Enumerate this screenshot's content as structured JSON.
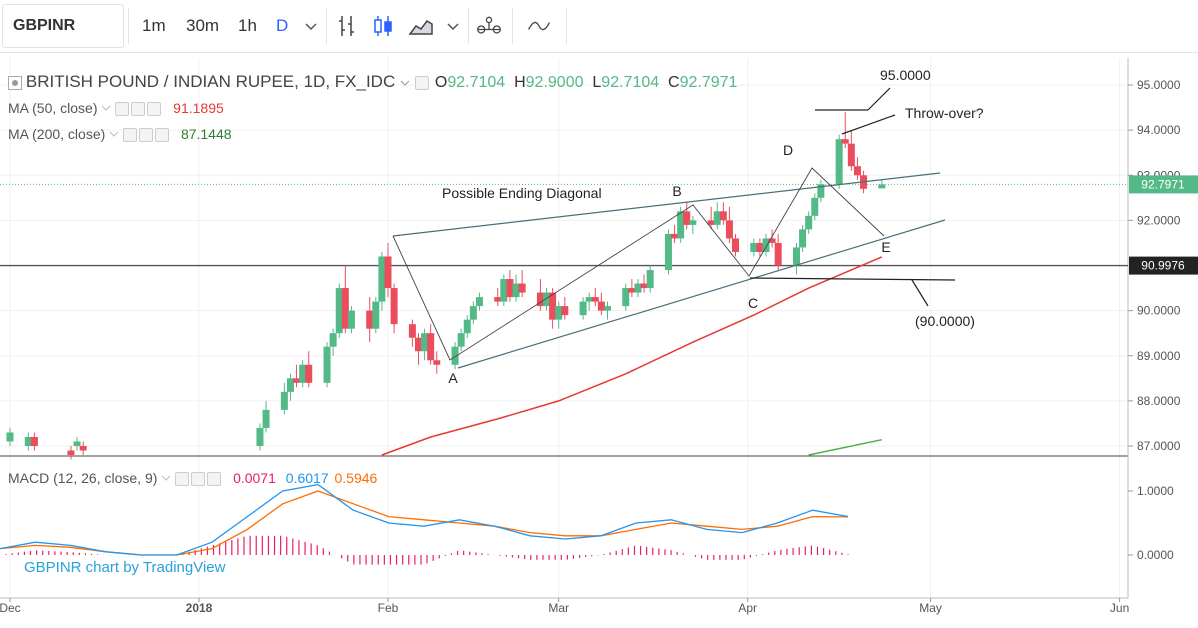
{
  "toolbar": {
    "symbol": "GBPINR",
    "intervals": [
      "1m",
      "30m",
      "1h",
      "D"
    ],
    "active_interval": "D",
    "icons": [
      "chevron-down-icon",
      "bar-style-icon",
      "candles-icon",
      "area-icon",
      "chevron-down-icon",
      "indicators-icon",
      "compare-icon"
    ]
  },
  "legend": {
    "title": "BRITISH POUND / INDIAN RUPEE, 1D, FX_IDC",
    "ohlc": {
      "o_label": "O",
      "o": "92.7104",
      "h_label": "H",
      "h": "92.9000",
      "l_label": "L",
      "l": "92.7104",
      "c_label": "C",
      "c": "92.7971"
    },
    "ma50": {
      "label": "MA (50, close)",
      "value": "91.1895"
    },
    "ma200": {
      "label": "MA (200, close)",
      "value": "87.1448"
    },
    "macd": {
      "label": "MACD (12, 26, close, 9)",
      "hist": "0.0071",
      "macd": "0.6017",
      "signal": "0.5946"
    }
  },
  "colors": {
    "up": "#53b987",
    "down": "#eb4d5c",
    "ma50": "#e53935",
    "ma200": "#4caf50",
    "macd": "#2196f3",
    "signal": "#ff6d00",
    "hist": "#e91e63",
    "accent": "#2962ff"
  },
  "annotations": {
    "title": "Possible Ending Diagonal",
    "labels": [
      "A",
      "B",
      "C",
      "D",
      "E"
    ],
    "target_high": "95.0000",
    "throw_over": "Throw-over?",
    "target_low": "(90.0000)"
  },
  "watermark": "GBPINR chart by TradingView",
  "chart_data": {
    "type": "candlestick",
    "title": "BRITISH POUND / INDIAN RUPEE, 1D, FX_IDC",
    "xlabels": [
      "Dec",
      "2018",
      "Feb",
      "Mar",
      "Apr",
      "May",
      "Jun"
    ],
    "yticks": [
      "95.0000",
      "94.0000",
      "93.0000",
      "92.0000",
      "90.0000",
      "89.0000",
      "88.0000",
      "87.0000"
    ],
    "price_labels": {
      "last": "92.7971",
      "line": "90.9976"
    },
    "ylim": [
      86.8,
      95.3
    ],
    "series": [
      {
        "name": "GBPINR",
        "candles": [
          {
            "date": "2017-12-01",
            "o": 87.1,
            "h": 87.4,
            "l": 87.0,
            "c": 87.3
          },
          {
            "date": "2017-12-04",
            "o": 87.0,
            "h": 87.3,
            "l": 86.9,
            "c": 87.2
          },
          {
            "date": "2017-12-05",
            "o": 87.2,
            "h": 87.3,
            "l": 86.9,
            "c": 87.0
          },
          {
            "date": "2017-12-11",
            "o": 86.9,
            "h": 87.0,
            "l": 86.7,
            "c": 86.8
          },
          {
            "date": "2017-12-12",
            "o": 87.0,
            "h": 87.2,
            "l": 86.9,
            "c": 87.1
          },
          {
            "date": "2017-12-13",
            "o": 87.0,
            "h": 87.1,
            "l": 86.8,
            "c": 86.9
          },
          {
            "date": "2018-01-11",
            "o": 87.0,
            "h": 87.5,
            "l": 86.9,
            "c": 87.4
          },
          {
            "date": "2018-01-12",
            "o": 87.4,
            "h": 88.0,
            "l": 87.3,
            "c": 87.8
          },
          {
            "date": "2018-01-15",
            "o": 87.8,
            "h": 88.4,
            "l": 87.7,
            "c": 88.2
          },
          {
            "date": "2018-01-16",
            "o": 88.2,
            "h": 88.6,
            "l": 88.0,
            "c": 88.5
          },
          {
            "date": "2018-01-17",
            "o": 88.5,
            "h": 88.8,
            "l": 88.3,
            "c": 88.4
          },
          {
            "date": "2018-01-18",
            "o": 88.4,
            "h": 88.9,
            "l": 88.3,
            "c": 88.8
          },
          {
            "date": "2018-01-19",
            "o": 88.8,
            "h": 89.1,
            "l": 88.3,
            "c": 88.4
          },
          {
            "date": "2018-01-22",
            "o": 88.4,
            "h": 89.3,
            "l": 88.3,
            "c": 89.2
          },
          {
            "date": "2018-01-23",
            "o": 89.2,
            "h": 89.6,
            "l": 89.0,
            "c": 89.5
          },
          {
            "date": "2018-01-24",
            "o": 89.5,
            "h": 90.6,
            "l": 89.4,
            "c": 90.5
          },
          {
            "date": "2018-01-25",
            "o": 90.5,
            "h": 91.0,
            "l": 89.5,
            "c": 89.6
          },
          {
            "date": "2018-01-26",
            "o": 89.6,
            "h": 90.1,
            "l": 89.5,
            "c": 90.0
          },
          {
            "date": "2018-01-29",
            "o": 90.0,
            "h": 90.3,
            "l": 89.3,
            "c": 89.6
          },
          {
            "date": "2018-01-30",
            "o": 89.6,
            "h": 90.3,
            "l": 89.5,
            "c": 90.2
          },
          {
            "date": "2018-01-31",
            "o": 90.2,
            "h": 91.3,
            "l": 90.0,
            "c": 91.2
          },
          {
            "date": "2018-02-01",
            "o": 91.2,
            "h": 91.5,
            "l": 90.3,
            "c": 90.5
          },
          {
            "date": "2018-02-02",
            "o": 90.5,
            "h": 90.6,
            "l": 89.5,
            "c": 89.7
          },
          {
            "date": "2018-02-05",
            "o": 89.7,
            "h": 89.8,
            "l": 89.2,
            "c": 89.4
          },
          {
            "date": "2018-02-06",
            "o": 89.4,
            "h": 89.5,
            "l": 88.8,
            "c": 89.1
          },
          {
            "date": "2018-02-07",
            "o": 89.1,
            "h": 89.6,
            "l": 88.9,
            "c": 89.5
          },
          {
            "date": "2018-02-08",
            "o": 89.5,
            "h": 89.7,
            "l": 88.8,
            "c": 88.9
          },
          {
            "date": "2018-02-09",
            "o": 88.9,
            "h": 89.1,
            "l": 88.6,
            "c": 88.8
          },
          {
            "date": "2018-02-12",
            "o": 88.8,
            "h": 89.3,
            "l": 88.7,
            "c": 89.2
          },
          {
            "date": "2018-02-13",
            "o": 89.2,
            "h": 89.6,
            "l": 89.1,
            "c": 89.5
          },
          {
            "date": "2018-02-14",
            "o": 89.5,
            "h": 89.9,
            "l": 89.4,
            "c": 89.8
          },
          {
            "date": "2018-02-15",
            "o": 89.8,
            "h": 90.2,
            "l": 89.7,
            "c": 90.1
          },
          {
            "date": "2018-02-16",
            "o": 90.1,
            "h": 90.4,
            "l": 90.0,
            "c": 90.3
          },
          {
            "date": "2018-02-19",
            "o": 90.3,
            "h": 90.5,
            "l": 90.1,
            "c": 90.2
          },
          {
            "date": "2018-02-20",
            "o": 90.2,
            "h": 90.8,
            "l": 90.1,
            "c": 90.7
          },
          {
            "date": "2018-02-21",
            "o": 90.7,
            "h": 90.9,
            "l": 90.2,
            "c": 90.3
          },
          {
            "date": "2018-02-22",
            "o": 90.3,
            "h": 90.8,
            "l": 90.2,
            "c": 90.6
          },
          {
            "date": "2018-02-23",
            "o": 90.6,
            "h": 90.9,
            "l": 90.3,
            "c": 90.4
          },
          {
            "date": "2018-02-26",
            "o": 90.4,
            "h": 90.7,
            "l": 90.0,
            "c": 90.1
          },
          {
            "date": "2018-02-27",
            "o": 90.1,
            "h": 90.5,
            "l": 90.0,
            "c": 90.4
          },
          {
            "date": "2018-02-28",
            "o": 90.4,
            "h": 90.5,
            "l": 89.6,
            "c": 89.8
          },
          {
            "date": "2018-03-01",
            "o": 89.8,
            "h": 90.2,
            "l": 89.6,
            "c": 90.1
          },
          {
            "date": "2018-03-02",
            "o": 90.1,
            "h": 90.3,
            "l": 89.8,
            "c": 89.9
          },
          {
            "date": "2018-03-05",
            "o": 89.9,
            "h": 90.3,
            "l": 89.8,
            "c": 90.2
          },
          {
            "date": "2018-03-06",
            "o": 90.2,
            "h": 90.4,
            "l": 90.0,
            "c": 90.3
          },
          {
            "date": "2018-03-07",
            "o": 90.3,
            "h": 90.5,
            "l": 90.1,
            "c": 90.2
          },
          {
            "date": "2018-03-08",
            "o": 90.2,
            "h": 90.4,
            "l": 89.9,
            "c": 90.0
          },
          {
            "date": "2018-03-09",
            "o": 90.0,
            "h": 90.2,
            "l": 89.8,
            "c": 90.1
          },
          {
            "date": "2018-03-12",
            "o": 90.1,
            "h": 90.6,
            "l": 90.0,
            "c": 90.5
          },
          {
            "date": "2018-03-13",
            "o": 90.5,
            "h": 90.7,
            "l": 90.3,
            "c": 90.4
          },
          {
            "date": "2018-03-14",
            "o": 90.4,
            "h": 90.7,
            "l": 90.3,
            "c": 90.6
          },
          {
            "date": "2018-03-15",
            "o": 90.6,
            "h": 90.8,
            "l": 90.4,
            "c": 90.5
          },
          {
            "date": "2018-03-16",
            "o": 90.5,
            "h": 91.0,
            "l": 90.4,
            "c": 90.9
          },
          {
            "date": "2018-03-19",
            "o": 90.9,
            "h": 91.8,
            "l": 90.8,
            "c": 91.7
          },
          {
            "date": "2018-03-20",
            "o": 91.7,
            "h": 91.9,
            "l": 91.5,
            "c": 91.6
          },
          {
            "date": "2018-03-21",
            "o": 91.6,
            "h": 92.3,
            "l": 91.5,
            "c": 92.2
          },
          {
            "date": "2018-03-22",
            "o": 92.2,
            "h": 92.4,
            "l": 91.8,
            "c": 91.9
          },
          {
            "date": "2018-03-23",
            "o": 91.9,
            "h": 92.1,
            "l": 91.7,
            "c": 92.0
          },
          {
            "date": "2018-03-26",
            "o": 92.0,
            "h": 92.3,
            "l": 91.8,
            "c": 91.9
          },
          {
            "date": "2018-03-27",
            "o": 91.9,
            "h": 92.4,
            "l": 91.8,
            "c": 92.2
          },
          {
            "date": "2018-03-28",
            "o": 92.2,
            "h": 92.4,
            "l": 91.9,
            "c": 92.0
          },
          {
            "date": "2018-03-29",
            "o": 92.0,
            "h": 92.3,
            "l": 91.5,
            "c": 91.6
          },
          {
            "date": "2018-03-30",
            "o": 91.6,
            "h": 91.7,
            "l": 91.2,
            "c": 91.3
          },
          {
            "date": "2018-04-02",
            "o": 91.3,
            "h": 91.6,
            "l": 91.2,
            "c": 91.5
          },
          {
            "date": "2018-04-03",
            "o": 91.5,
            "h": 91.6,
            "l": 91.2,
            "c": 91.3
          },
          {
            "date": "2018-04-04",
            "o": 91.3,
            "h": 91.7,
            "l": 91.2,
            "c": 91.6
          },
          {
            "date": "2018-04-05",
            "o": 91.6,
            "h": 91.8,
            "l": 91.4,
            "c": 91.5
          },
          {
            "date": "2018-04-06",
            "o": 91.5,
            "h": 91.7,
            "l": 90.9,
            "c": 91.0
          },
          {
            "date": "2018-04-09",
            "o": 91.0,
            "h": 91.5,
            "l": 90.8,
            "c": 91.4
          },
          {
            "date": "2018-04-10",
            "o": 91.4,
            "h": 91.9,
            "l": 91.3,
            "c": 91.8
          },
          {
            "date": "2018-04-11",
            "o": 91.8,
            "h": 92.2,
            "l": 91.7,
            "c": 92.1
          },
          {
            "date": "2018-04-12",
            "o": 92.1,
            "h": 92.6,
            "l": 92.0,
            "c": 92.5
          },
          {
            "date": "2018-04-13",
            "o": 92.5,
            "h": 92.9,
            "l": 92.4,
            "c": 92.8
          },
          {
            "date": "2018-04-16",
            "o": 92.8,
            "h": 93.9,
            "l": 92.7,
            "c": 93.8
          },
          {
            "date": "2018-04-17",
            "o": 93.8,
            "h": 94.4,
            "l": 93.6,
            "c": 93.7
          },
          {
            "date": "2018-04-18",
            "o": 93.7,
            "h": 94.0,
            "l": 93.1,
            "c": 93.2
          },
          {
            "date": "2018-04-19",
            "o": 93.2,
            "h": 93.4,
            "l": 92.9,
            "c": 93.0
          },
          {
            "date": "2018-04-20",
            "o": 93.0,
            "h": 93.1,
            "l": 92.6,
            "c": 92.7
          },
          {
            "date": "2018-04-23",
            "o": 92.71,
            "h": 92.9,
            "l": 92.71,
            "c": 92.797
          }
        ]
      },
      {
        "name": "MA (50, close)",
        "points": [
          [
            "2018-01-31",
            86.8
          ],
          [
            "2018-02-08",
            87.2
          ],
          [
            "2018-02-19",
            87.6
          ],
          [
            "2018-03-01",
            88.0
          ],
          [
            "2018-03-12",
            88.6
          ],
          [
            "2018-03-23",
            89.3
          ],
          [
            "2018-04-02",
            89.9
          ],
          [
            "2018-04-11",
            90.5
          ],
          [
            "2018-04-23",
            91.19
          ]
        ]
      },
      {
        "name": "MA (200, close)",
        "points": [
          [
            "2018-04-11",
            86.8
          ],
          [
            "2018-04-23",
            87.14
          ]
        ]
      },
      {
        "name": "MACD (12, 26, close, 9)",
        "macd": [
          0.1,
          0.2,
          0.15,
          0.05,
          0.0,
          0.0,
          0.2,
          0.6,
          1.0,
          1.1,
          0.7,
          0.5,
          0.45,
          0.55,
          0.45,
          0.3,
          0.25,
          0.3,
          0.5,
          0.55,
          0.4,
          0.35,
          0.5,
          0.7,
          0.6017
        ],
        "signal": [
          0.1,
          0.15,
          0.12,
          0.05,
          0.0,
          0.0,
          0.1,
          0.4,
          0.8,
          1.0,
          0.8,
          0.6,
          0.55,
          0.5,
          0.45,
          0.35,
          0.3,
          0.3,
          0.4,
          0.5,
          0.45,
          0.4,
          0.45,
          0.6,
          0.5946
        ]
      }
    ],
    "macd_ylim": [
      -0.3,
      1.25
    ],
    "macd_yticks": [
      "1.0000",
      "0.0000"
    ]
  }
}
